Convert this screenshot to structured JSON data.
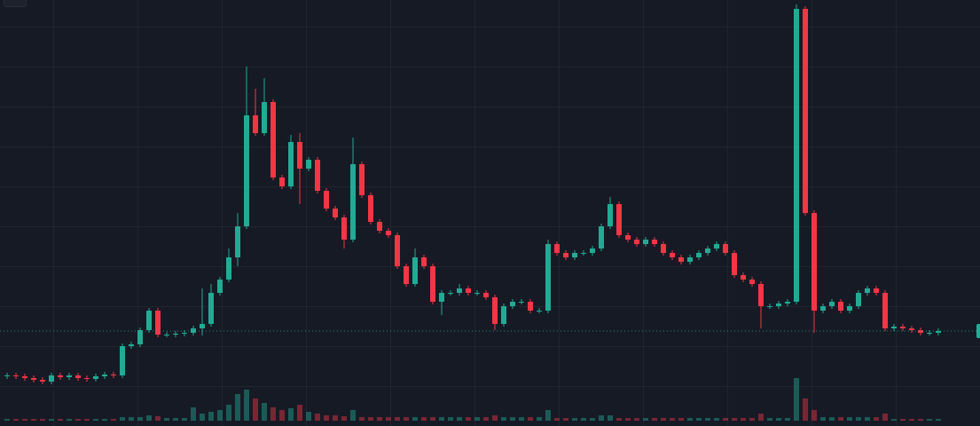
{
  "chart_data": {
    "type": "candlestick",
    "ylim": [
      0,
      480
    ],
    "grid": true,
    "up_color": "#22ab94",
    "down_color": "#f23645",
    "open": [
      56,
      57,
      56,
      54,
      52,
      50,
      57,
      55,
      57,
      54,
      53,
      56,
      58,
      57,
      90,
      92,
      108,
      130,
      103,
      103,
      104,
      105,
      110,
      115,
      150,
      165,
      190,
      225,
      350,
      330,
      365,
      280,
      270,
      320,
      290,
      300,
      265,
      245,
      235,
      210,
      295,
      260,
      230,
      220,
      215,
      180,
      160,
      190,
      180,
      140,
      150,
      150,
      155,
      150,
      150,
      145,
      115,
      135,
      140,
      140,
      130,
      130,
      205,
      195,
      190,
      195,
      195,
      200,
      225,
      250,
      215,
      210,
      205,
      210,
      205,
      195,
      190,
      185,
      190,
      195,
      200,
      205,
      195,
      170,
      165,
      160,
      135,
      135,
      138,
      140,
      470,
      240,
      130,
      135,
      140,
      130,
      135,
      150,
      155,
      150,
      110,
      112,
      110,
      108,
      105,
      105
    ],
    "high": [
      60,
      60,
      59,
      57,
      55,
      60,
      60,
      60,
      60,
      57,
      59,
      61,
      61,
      93,
      95,
      111,
      133,
      133,
      106,
      107,
      108,
      113,
      155,
      160,
      168,
      200,
      240,
      405,
      380,
      392,
      368,
      283,
      328,
      330,
      303,
      303,
      268,
      248,
      238,
      325,
      298,
      263,
      233,
      223,
      218,
      183,
      200,
      193,
      183,
      153,
      153,
      160,
      158,
      153,
      153,
      148,
      138,
      143,
      143,
      143,
      133,
      210,
      208,
      198,
      198,
      198,
      203,
      228,
      258,
      253,
      218,
      213,
      213,
      213,
      208,
      198,
      193,
      193,
      198,
      203,
      208,
      208,
      198,
      173,
      168,
      163,
      138,
      141,
      143,
      475,
      473,
      243,
      138,
      143,
      143,
      138,
      153,
      158,
      158,
      153,
      115,
      115,
      113,
      111,
      108,
      110
    ],
    "low": [
      53,
      53,
      51,
      49,
      47,
      47,
      52,
      52,
      51,
      50,
      50,
      53,
      54,
      54,
      87,
      89,
      105,
      100,
      100,
      100,
      101,
      102,
      102,
      112,
      147,
      162,
      180,
      222,
      327,
      327,
      277,
      267,
      267,
      250,
      287,
      262,
      242,
      232,
      200,
      207,
      257,
      227,
      217,
      212,
      177,
      157,
      157,
      177,
      137,
      125,
      147,
      147,
      147,
      147,
      142,
      108,
      112,
      132,
      137,
      127,
      127,
      127,
      192,
      187,
      187,
      192,
      192,
      197,
      222,
      212,
      207,
      202,
      202,
      202,
      192,
      187,
      182,
      182,
      187,
      192,
      197,
      192,
      167,
      162,
      157,
      110,
      132,
      132,
      135,
      137,
      237,
      105,
      127,
      132,
      127,
      127,
      132,
      147,
      147,
      107,
      107,
      107,
      105,
      102,
      102,
      102
    ],
    "close": [
      57,
      56,
      54,
      52,
      50,
      57,
      55,
      57,
      54,
      53,
      56,
      58,
      57,
      90,
      92,
      108,
      130,
      103,
      103,
      104,
      105,
      110,
      115,
      150,
      165,
      190,
      225,
      350,
      330,
      365,
      280,
      270,
      320,
      290,
      300,
      265,
      245,
      235,
      210,
      295,
      260,
      230,
      220,
      215,
      180,
      160,
      190,
      180,
      140,
      150,
      150,
      155,
      150,
      150,
      145,
      115,
      135,
      140,
      140,
      130,
      130,
      205,
      195,
      190,
      195,
      195,
      200,
      225,
      250,
      215,
      210,
      205,
      210,
      205,
      195,
      190,
      185,
      190,
      195,
      200,
      205,
      195,
      170,
      165,
      160,
      135,
      135,
      138,
      140,
      470,
      240,
      130,
      135,
      140,
      130,
      135,
      150,
      155,
      150,
      110,
      112,
      110,
      108,
      105,
      105,
      107
    ],
    "volume": [
      2,
      2,
      2,
      2,
      2,
      2,
      2,
      2,
      2,
      2,
      2,
      2,
      2,
      4,
      4,
      4,
      6,
      5,
      3,
      3,
      3,
      15,
      8,
      10,
      12,
      18,
      30,
      35,
      25,
      20,
      15,
      12,
      14,
      18,
      10,
      8,
      6,
      6,
      5,
      12,
      4,
      4,
      4,
      4,
      4,
      4,
      4,
      4,
      4,
      4,
      4,
      4,
      4,
      4,
      4,
      6,
      4,
      4,
      4,
      4,
      4,
      12,
      3,
      3,
      3,
      3,
      3,
      6,
      6,
      3,
      3,
      3,
      3,
      3,
      3,
      3,
      3,
      3,
      3,
      3,
      3,
      3,
      3,
      3,
      3,
      8,
      3,
      3,
      3,
      48,
      25,
      12,
      4,
      4,
      4,
      4,
      4,
      4,
      4,
      8,
      2,
      2,
      2,
      2,
      2,
      2
    ]
  }
}
